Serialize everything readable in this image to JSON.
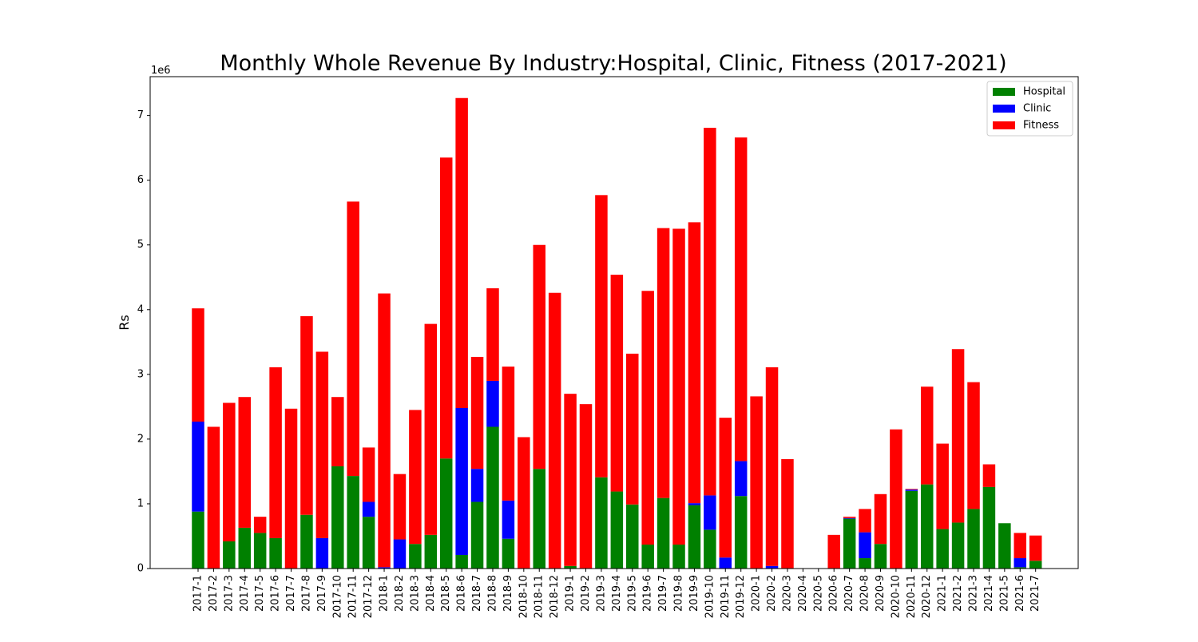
{
  "chart_data": {
    "type": "bar",
    "stacked": true,
    "title": "Monthly Whole Revenue By Industry:Hospital, Clinic, Fitness (2017-2021)",
    "xlabel": "",
    "ylabel": "Rs",
    "y_offset_text": "1e6",
    "ylim": [
      0,
      7.6
    ],
    "y_ticks": [
      0,
      1,
      2,
      3,
      4,
      5,
      6,
      7
    ],
    "grid": false,
    "legend_position": "top-right",
    "categories": [
      "2017-1",
      "2017-2",
      "2017-3",
      "2017-4",
      "2017-5",
      "2017-6",
      "2017-7",
      "2017-8",
      "2017-9",
      "2017-10",
      "2017-11",
      "2017-12",
      "2018-1",
      "2018-2",
      "2018-3",
      "2018-4",
      "2018-5",
      "2018-6",
      "2018-7",
      "2018-8",
      "2018-9",
      "2018-10",
      "2018-11",
      "2018-12",
      "2019-1",
      "2019-2",
      "2019-3",
      "2019-4",
      "2019-5",
      "2019-6",
      "2019-7",
      "2019-8",
      "2019-9",
      "2019-10",
      "2019-11",
      "2019-12",
      "2020-1",
      "2020-2",
      "2020-3",
      "2020-4",
      "2020-5",
      "2020-6",
      "2020-7",
      "2020-8",
      "2020-9",
      "2020-10",
      "2020-11",
      "2020-12",
      "2021-1",
      "2021-2",
      "2021-3",
      "2021-4",
      "2021-5",
      "2021-6",
      "2021-7"
    ],
    "series": [
      {
        "name": "Hospital",
        "color": "#008000",
        "values": [
          0.88,
          0,
          0.42,
          0.63,
          0.55,
          0.47,
          0,
          0.83,
          0,
          1.58,
          1.43,
          0.8,
          0,
          0,
          0.38,
          0.52,
          1.7,
          0.21,
          1.03,
          2.19,
          0.46,
          0,
          1.54,
          0,
          0.04,
          0,
          1.41,
          1.19,
          0.99,
          0.37,
          1.09,
          0.37,
          0.98,
          0.6,
          0,
          1.12,
          0,
          0,
          0,
          0,
          0,
          0,
          0.77,
          0.16,
          0.38,
          0,
          1.2,
          1.3,
          0.61,
          0.71,
          0.92,
          1.26,
          0.7,
          0.02,
          0.12
        ]
      },
      {
        "name": "Clinic",
        "color": "#0000ff",
        "values": [
          1.39,
          0,
          0,
          0,
          0,
          0,
          0,
          0,
          0.47,
          0,
          0,
          0.23,
          0.02,
          0.45,
          0,
          0,
          0,
          2.27,
          0.51,
          0.71,
          0.59,
          0,
          0,
          0,
          0,
          0,
          0,
          0,
          0,
          0,
          0,
          0,
          0.03,
          0.53,
          0.17,
          0.54,
          0,
          0.04,
          0,
          0,
          0,
          0,
          0.01,
          0.4,
          0,
          0,
          0.02,
          0,
          0,
          0,
          0,
          0,
          0,
          0.14,
          0
        ]
      },
      {
        "name": "Fitness",
        "color": "#ff0000",
        "values": [
          1.75,
          2.19,
          2.14,
          2.02,
          0.25,
          2.64,
          2.47,
          3.07,
          2.88,
          1.07,
          4.24,
          0.84,
          4.23,
          1.01,
          2.07,
          3.26,
          4.65,
          4.79,
          1.73,
          1.43,
          2.07,
          2.03,
          3.46,
          4.26,
          2.66,
          2.54,
          4.36,
          3.35,
          2.33,
          3.92,
          4.17,
          4.88,
          4.34,
          5.68,
          2.16,
          5.0,
          2.66,
          3.07,
          1.69,
          0,
          0,
          0.52,
          0.02,
          0.36,
          0.77,
          2.15,
          0.01,
          1.51,
          1.32,
          2.68,
          1.96,
          0.35,
          0,
          0.39,
          0.39
        ]
      }
    ]
  }
}
